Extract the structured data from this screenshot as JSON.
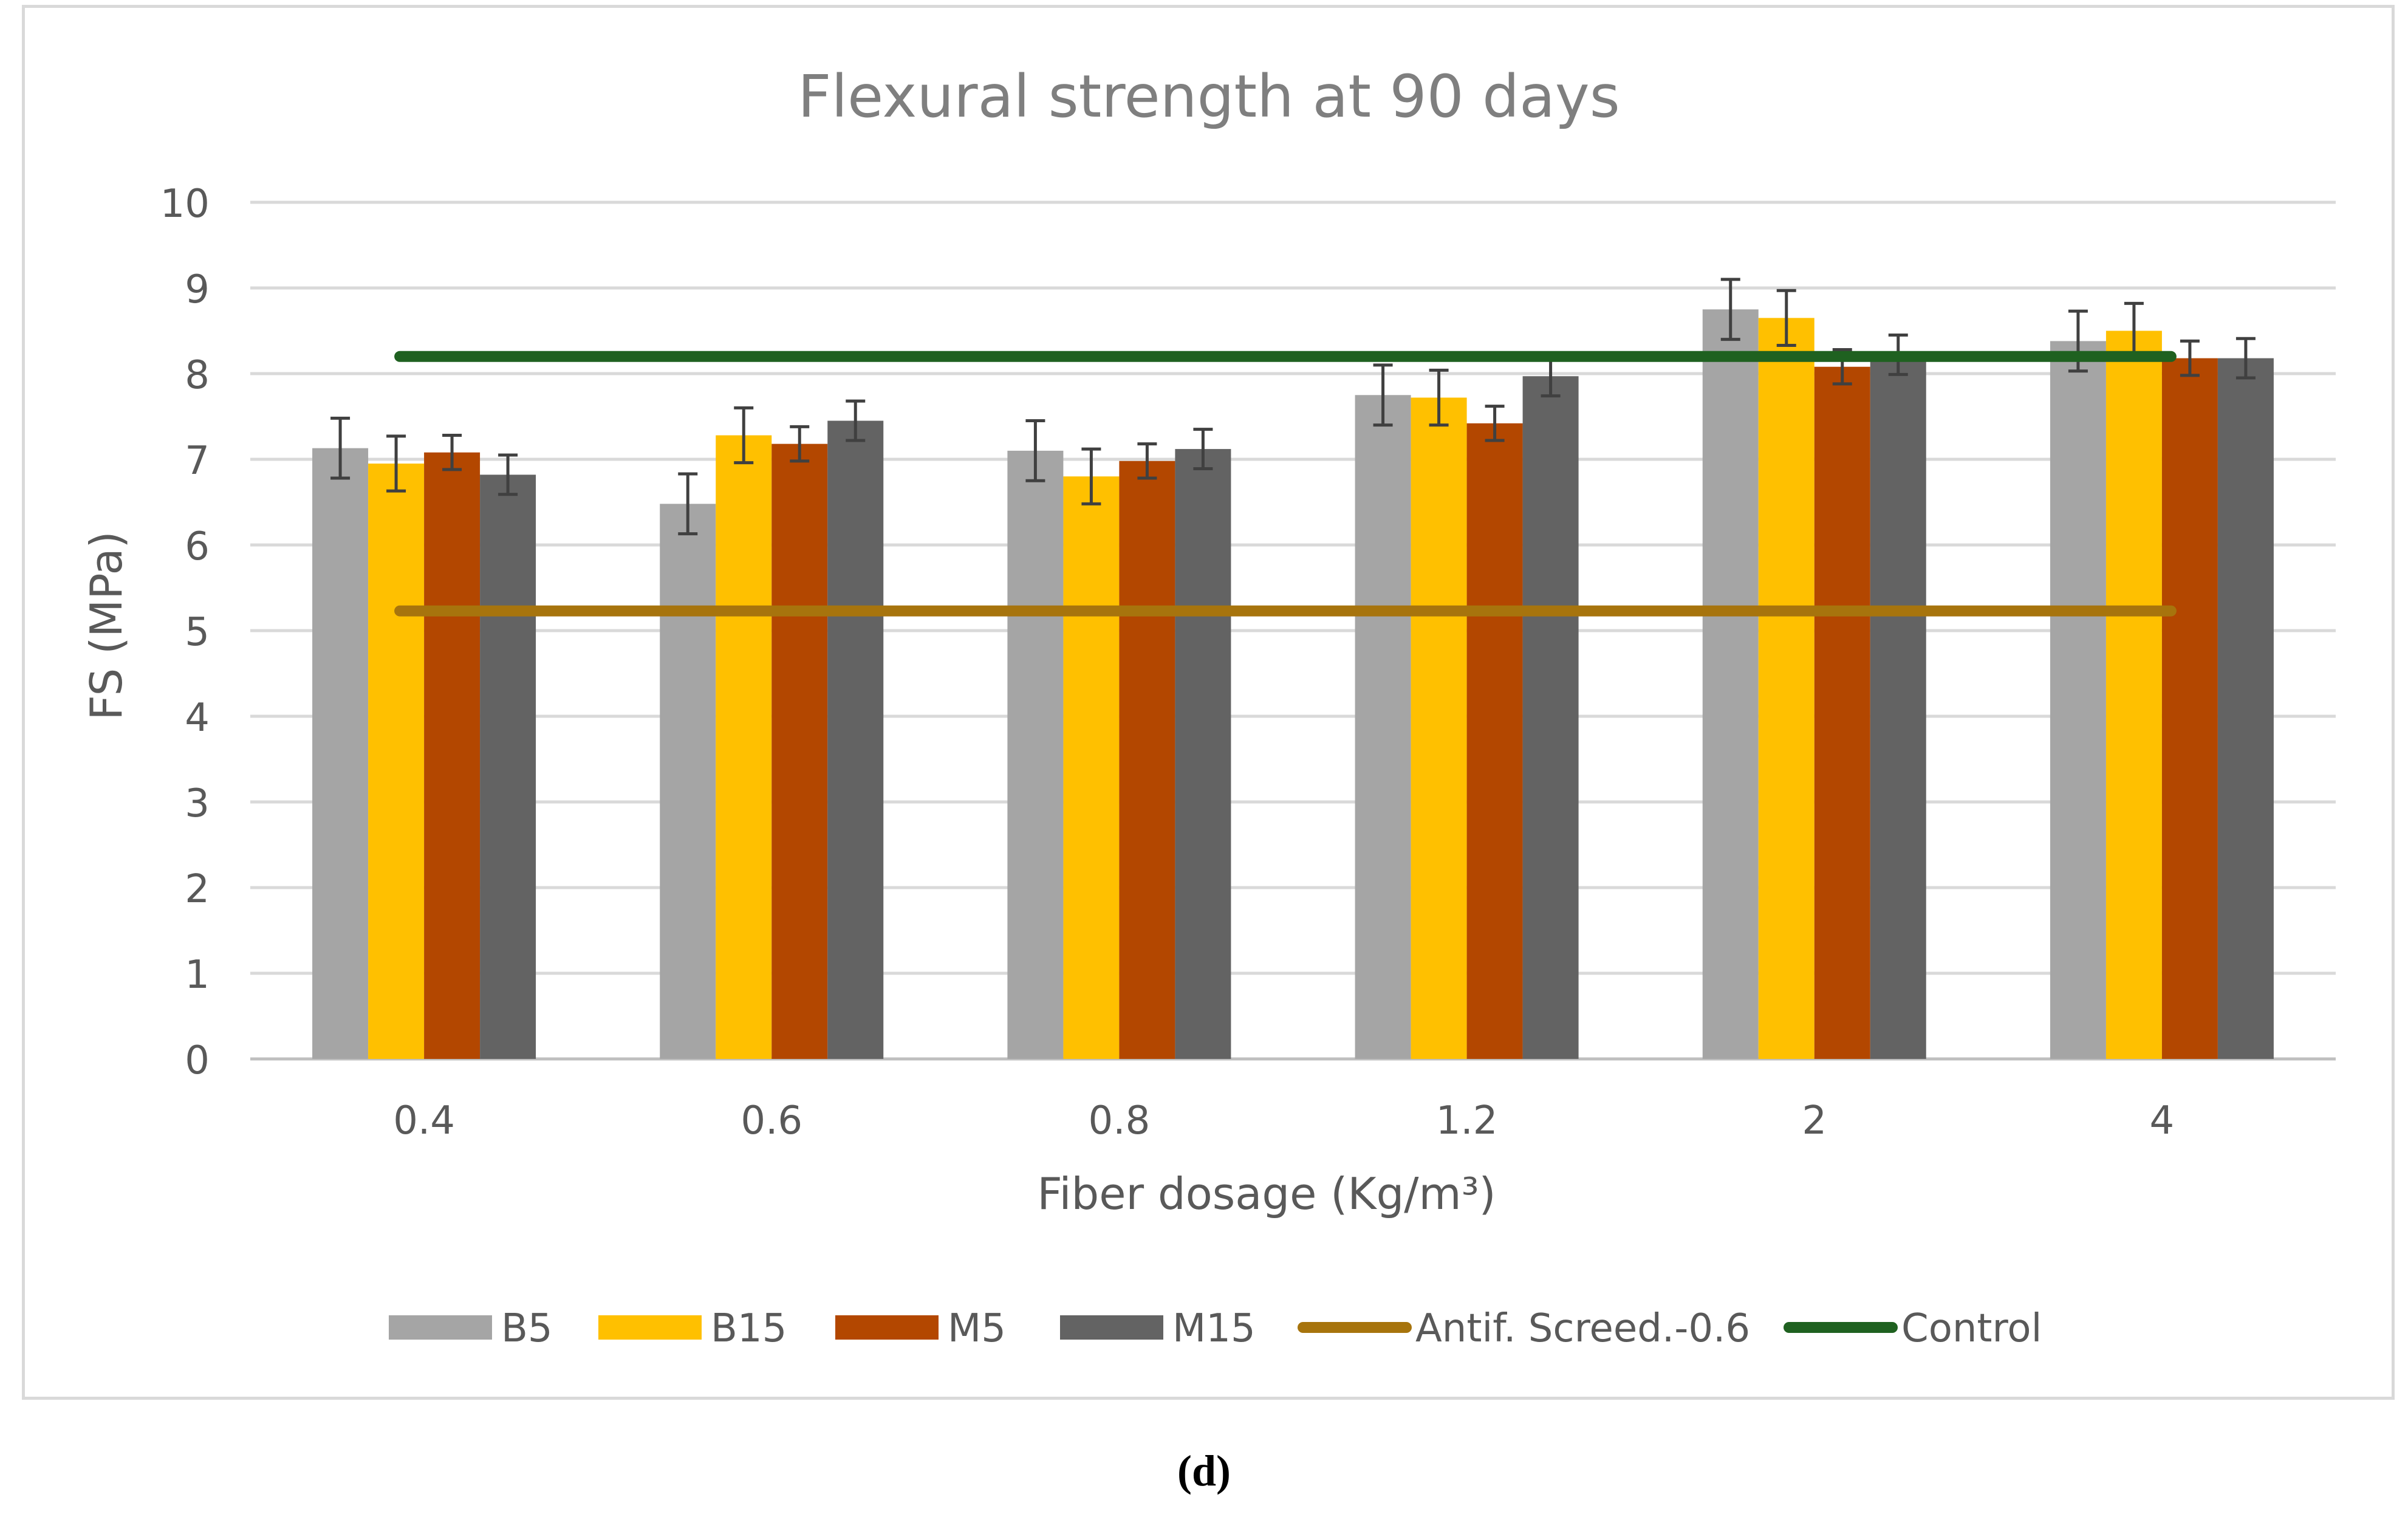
{
  "chart_data": {
    "type": "bar",
    "title": "Flexural strength at 90 days",
    "xlabel": "Fiber dosage (Kg/m³)",
    "ylabel": "FS (MPa)",
    "ylim": [
      0,
      10
    ],
    "yticks": [
      0,
      1,
      2,
      3,
      4,
      5,
      6,
      7,
      8,
      9,
      10
    ],
    "grid": true,
    "legend_position": "bottom",
    "categories": [
      "0.4",
      "0.6",
      "0.8",
      "1.2",
      "2",
      "4"
    ],
    "series": [
      {
        "name": "B5",
        "color": "#a5a5a5",
        "values": [
          7.13,
          6.48,
          7.1,
          7.75,
          8.75,
          8.38
        ],
        "errors": [
          0.35,
          0.35,
          0.35,
          0.35,
          0.35,
          0.35
        ]
      },
      {
        "name": "B15",
        "color": "#ffc000",
        "values": [
          6.95,
          7.28,
          6.8,
          7.72,
          8.65,
          8.5
        ],
        "errors": [
          0.32,
          0.32,
          0.32,
          0.32,
          0.32,
          0.32
        ]
      },
      {
        "name": "M5",
        "color": "#b34700",
        "values": [
          7.08,
          7.18,
          6.98,
          7.42,
          8.08,
          8.18
        ],
        "errors": [
          0.2,
          0.2,
          0.2,
          0.2,
          0.2,
          0.2
        ]
      },
      {
        "name": "M15",
        "color": "#636363",
        "values": [
          6.82,
          7.45,
          7.12,
          7.97,
          8.22,
          8.18
        ],
        "errors": [
          0.23,
          0.23,
          0.23,
          0.23,
          0.23,
          0.23
        ]
      }
    ],
    "reference_lines": [
      {
        "name": "Antif. Screed.-0.6",
        "value": 5.23,
        "color": "#a7740d"
      },
      {
        "name": "Control",
        "value": 8.2,
        "color": "#1f6120"
      }
    ]
  },
  "caption": "(d)"
}
